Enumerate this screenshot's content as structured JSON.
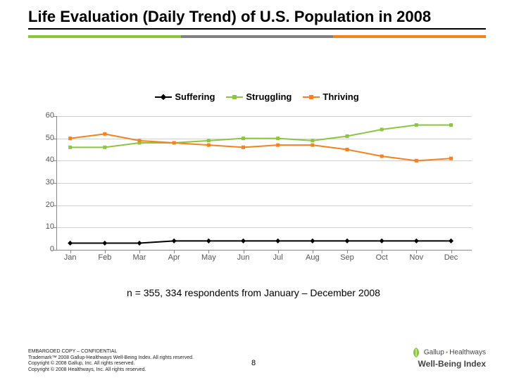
{
  "title": "Life Evaluation (Daily Trend) of U.S. Population in 2008",
  "accent_colors": [
    "#8cc63f",
    "#808080",
    "#f58220"
  ],
  "chart": {
    "type": "line",
    "ylim": [
      0,
      60
    ],
    "ytick_step": 10,
    "yticks": [
      0,
      10,
      20,
      30,
      40,
      50,
      60
    ],
    "categories": [
      "Jan",
      "Feb",
      "Mar",
      "Apr",
      "May",
      "Jun",
      "Jul",
      "Aug",
      "Sep",
      "Oct",
      "Nov",
      "Dec"
    ],
    "grid_color": "#d0d0d0",
    "axis_color": "#888888",
    "background_color": "#ffffff",
    "label_fontsize": 11,
    "line_width": 2,
    "marker_size": 5,
    "series": [
      {
        "name": "Suffering",
        "color": "#000000",
        "marker": "diamond",
        "values": [
          3,
          3,
          3,
          4,
          4,
          4,
          4,
          4,
          4,
          4,
          4,
          4
        ]
      },
      {
        "name": "Struggling",
        "color": "#8cc63f",
        "marker": "square",
        "values": [
          46,
          46,
          48,
          48,
          49,
          50,
          50,
          49,
          51,
          54,
          56,
          56
        ]
      },
      {
        "name": "Thriving",
        "color": "#f58220",
        "marker": "square",
        "values": [
          50,
          52,
          49,
          48,
          47,
          46,
          47,
          47,
          45,
          42,
          40,
          41
        ]
      }
    ]
  },
  "caption": "n = 355, 334 respondents from January – December 2008",
  "footer": {
    "line1": "EMBARGOED COPY – CONFIDENTIAL",
    "line2": "Trademark™ 2008 Gallup-Healthways Well-Being Index. All rights reserved.",
    "line3": "Copyright © 2008 Gallup, Inc. All rights reserved.",
    "line4": "Copyright © 2008 Healthways, Inc. All rights reserved."
  },
  "page_number": "8",
  "logo": {
    "brand1": "Gallup",
    "brand2": "Healthways",
    "product": "Well-Being Index",
    "leaf_color": "#8cc63f",
    "text_color": "#444444"
  }
}
